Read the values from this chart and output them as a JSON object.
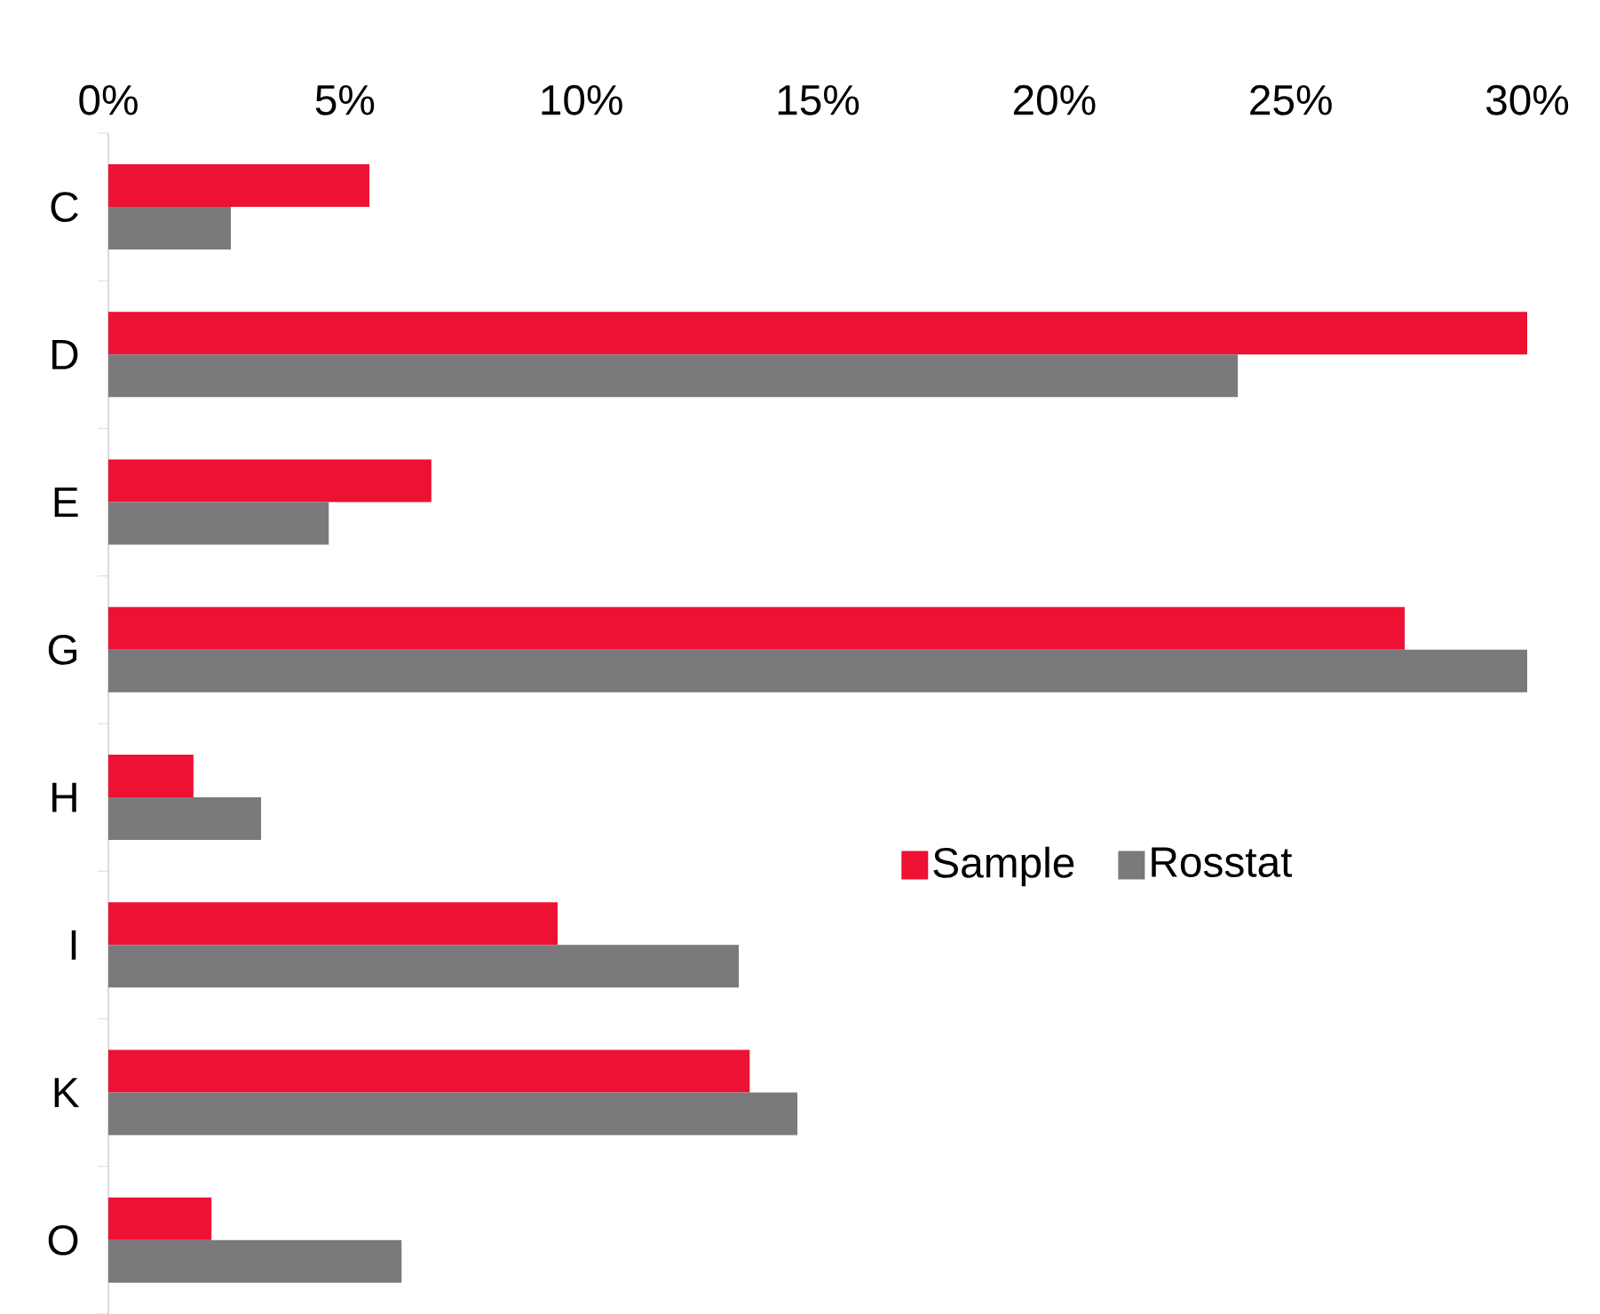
{
  "chart_data": {
    "type": "bar",
    "orientation": "horizontal",
    "categories": [
      "C",
      "D",
      "E",
      "G",
      "H",
      "I",
      "K",
      "O"
    ],
    "series": [
      {
        "name": "Sample",
        "color": "#ed1133",
        "values": [
          5.52,
          30,
          6.83,
          27.41,
          1.8,
          9.5,
          13.56,
          2.18
        ]
      },
      {
        "name": "Rosstat",
        "color": "#7a7a7c",
        "values": [
          2.59,
          23.88,
          4.66,
          30,
          3.23,
          13.33,
          14.57,
          6.2
        ]
      }
    ],
    "xlim": [
      0,
      30
    ],
    "xticks": [
      {
        "value": 0,
        "label": "0%"
      },
      {
        "value": 5,
        "label": "5%"
      },
      {
        "value": 10,
        "label": "10%"
      },
      {
        "value": 15,
        "label": "15%"
      },
      {
        "value": 20,
        "label": "20%"
      },
      {
        "value": 25,
        "label": "25%"
      },
      {
        "value": 30,
        "label": "30%"
      }
    ],
    "grid": false,
    "legend": "right"
  }
}
